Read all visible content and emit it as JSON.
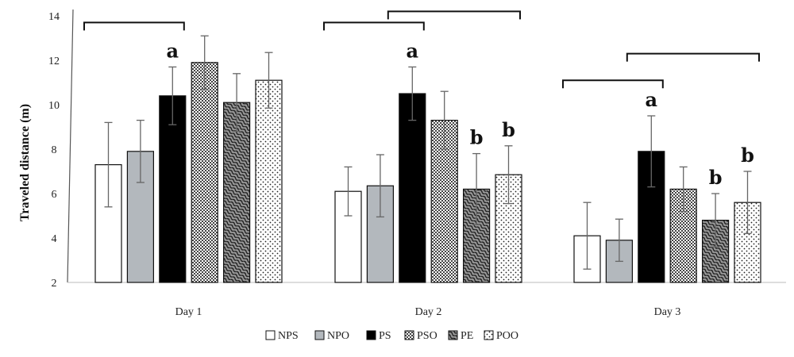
{
  "chart_data": {
    "type": "bar",
    "ylabel": "Traveled distance (m)",
    "ylim": [
      2,
      14
    ],
    "yticks": [
      2,
      4,
      6,
      8,
      10,
      12,
      14
    ],
    "categories": [
      "Day 1",
      "Day 2",
      "Day 3"
    ],
    "series": [
      {
        "name": "NPS",
        "pattern": "white",
        "values": [
          7.3,
          6.1,
          4.1
        ],
        "errors": [
          1.9,
          1.1,
          1.5
        ]
      },
      {
        "name": "NPO",
        "pattern": "gray",
        "values": [
          7.9,
          6.35,
          3.9
        ],
        "errors": [
          1.4,
          1.4,
          0.95
        ]
      },
      {
        "name": "PS",
        "pattern": "black",
        "values": [
          10.4,
          10.5,
          7.9
        ],
        "errors": [
          1.3,
          1.2,
          1.6
        ]
      },
      {
        "name": "PSO",
        "pattern": "checker",
        "values": [
          11.9,
          9.3,
          6.2
        ],
        "errors": [
          1.2,
          1.3,
          1.0
        ]
      },
      {
        "name": "PE",
        "pattern": "waves",
        "values": [
          10.1,
          6.2,
          4.8
        ],
        "errors": [
          1.3,
          1.6,
          1.2
        ]
      },
      {
        "name": "POO",
        "pattern": "dots",
        "values": [
          11.1,
          6.85,
          5.6
        ],
        "errors": [
          1.25,
          1.3,
          1.4
        ]
      }
    ],
    "significance": [
      {
        "category": 0,
        "series": 2,
        "label": "a"
      },
      {
        "category": 1,
        "series": 2,
        "label": "a"
      },
      {
        "category": 1,
        "series": 4,
        "label": "b"
      },
      {
        "category": 1,
        "series": 5,
        "label": "b"
      },
      {
        "category": 2,
        "series": 2,
        "label": "a"
      },
      {
        "category": 2,
        "series": 4,
        "label": "b"
      },
      {
        "category": 2,
        "series": 5,
        "label": "b"
      }
    ],
    "brackets": [
      {
        "category": 0,
        "from_series": 0,
        "to_series": 2,
        "y": 13.7
      },
      {
        "category": 1,
        "from_series": 0,
        "to_series": 2,
        "y": 13.7
      },
      {
        "category": 1,
        "from_series": 2,
        "to_series": 5,
        "y": 14.2
      },
      {
        "category": 2,
        "from_series": 0,
        "to_series": 2,
        "y": 11.1
      },
      {
        "category": 2,
        "from_series": 2,
        "to_series": 5,
        "y": 12.3
      }
    ],
    "legend_position": "bottom-center",
    "grid": false
  }
}
